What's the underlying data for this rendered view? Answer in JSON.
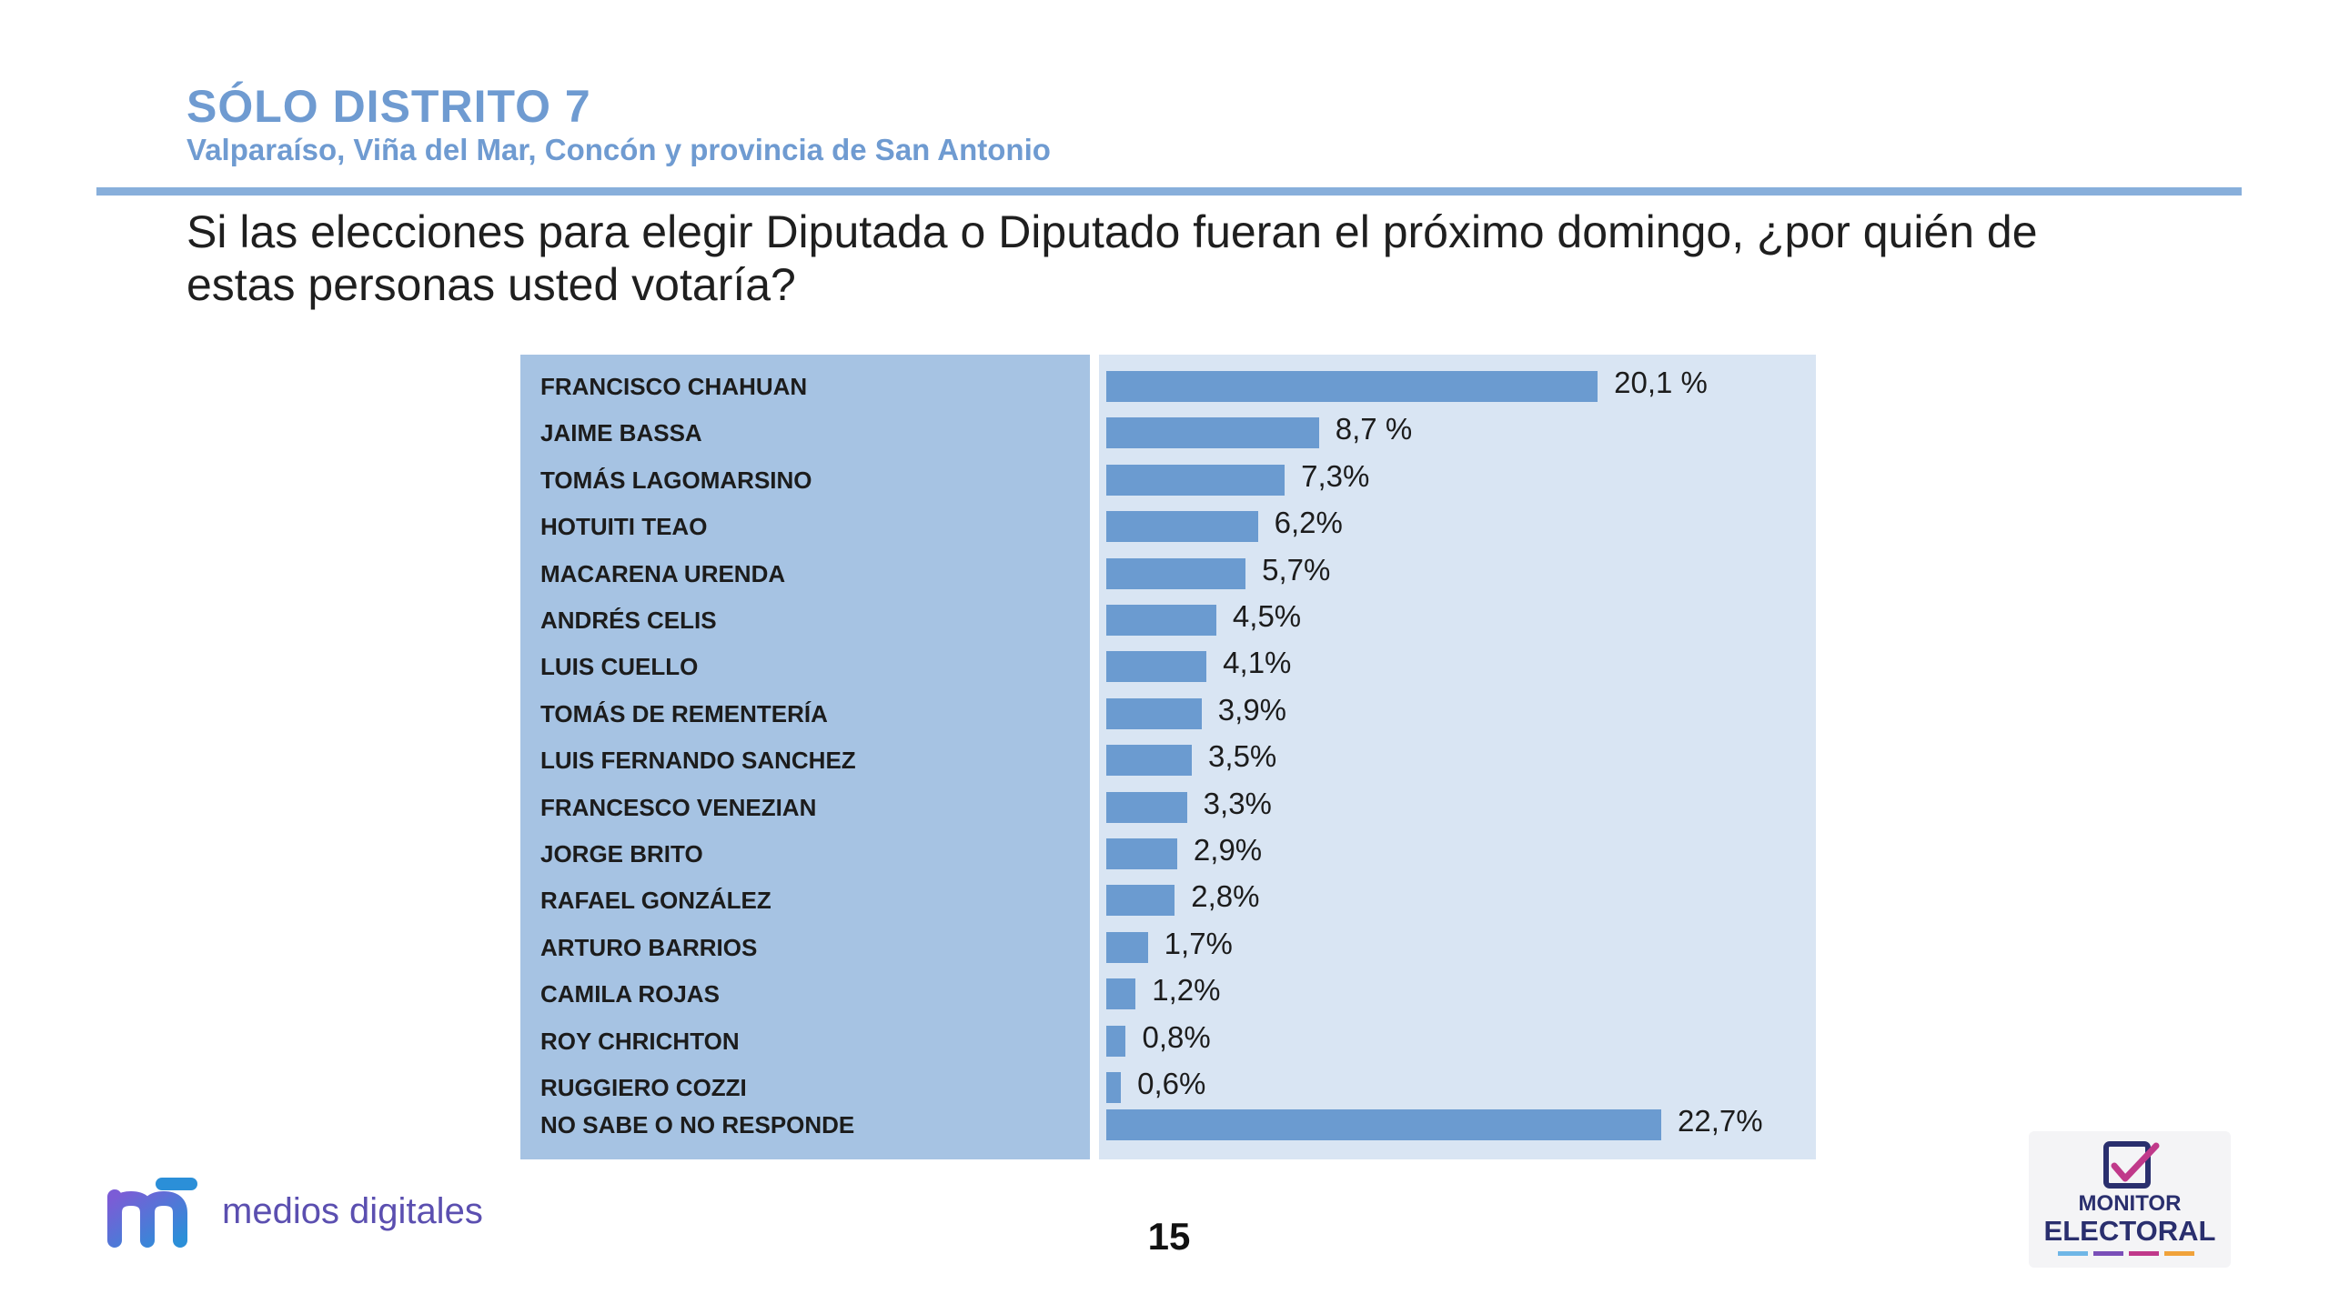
{
  "header": {
    "title": "SÓLO DISTRITO 7",
    "subtitle": "Valparaíso, Viña del Mar, Concón y provincia de San Antonio"
  },
  "question": "Si las elecciones para elegir Diputada o Diputado fueran el próximo domingo, ¿por quién de estas personas usted votaría?",
  "chart_data": {
    "type": "bar",
    "orientation": "horizontal",
    "categories": [
      "FRANCISCO CHAHUAN",
      "JAIME BASSA",
      "TOMÁS LAGOMARSINO",
      "HOTUITI TEAO",
      "MACARENA URENDA",
      "ANDRÉS CELIS",
      "LUIS CUELLO",
      "TOMÁS DE REMENTERÍA",
      "LUIS FERNANDO SANCHEZ",
      "FRANCESCO VENEZIAN",
      "JORGE BRITO",
      "RAFAEL GONZÁLEZ",
      "ARTURO BARRIOS",
      "CAMILA ROJAS",
      "ROY CHRICHTON",
      "RUGGIERO COZZI",
      "NO SABE O NO RESPONDE"
    ],
    "values": [
      20.1,
      8.7,
      7.3,
      6.2,
      5.7,
      4.5,
      4.1,
      3.9,
      3.5,
      3.3,
      2.9,
      2.8,
      1.7,
      1.2,
      0.8,
      0.6,
      22.7
    ],
    "value_labels": [
      "20,1 %",
      "8,7 %",
      "7,3%",
      "6,2%",
      "5,7%",
      "4,5%",
      "4,1%",
      "3,9%",
      "3,5%",
      "3,3%",
      "2,9%",
      "2,8%",
      "1,7%",
      "1,2%",
      "0,8%",
      "0,6%",
      "22,7%"
    ],
    "xlim": [
      0,
      22.7
    ],
    "bar_color": "#6b9bd0",
    "grid": false,
    "legend": "none"
  },
  "footer": {
    "brand_left": "medios digitales",
    "page_number": "15",
    "brand_right_line1": "MONITOR",
    "brand_right_line2": "ELECTORAL"
  },
  "colors": {
    "accent": "#6f9bd1",
    "label_panel": "#a6c3e3",
    "bar_panel": "#d9e5f3"
  }
}
